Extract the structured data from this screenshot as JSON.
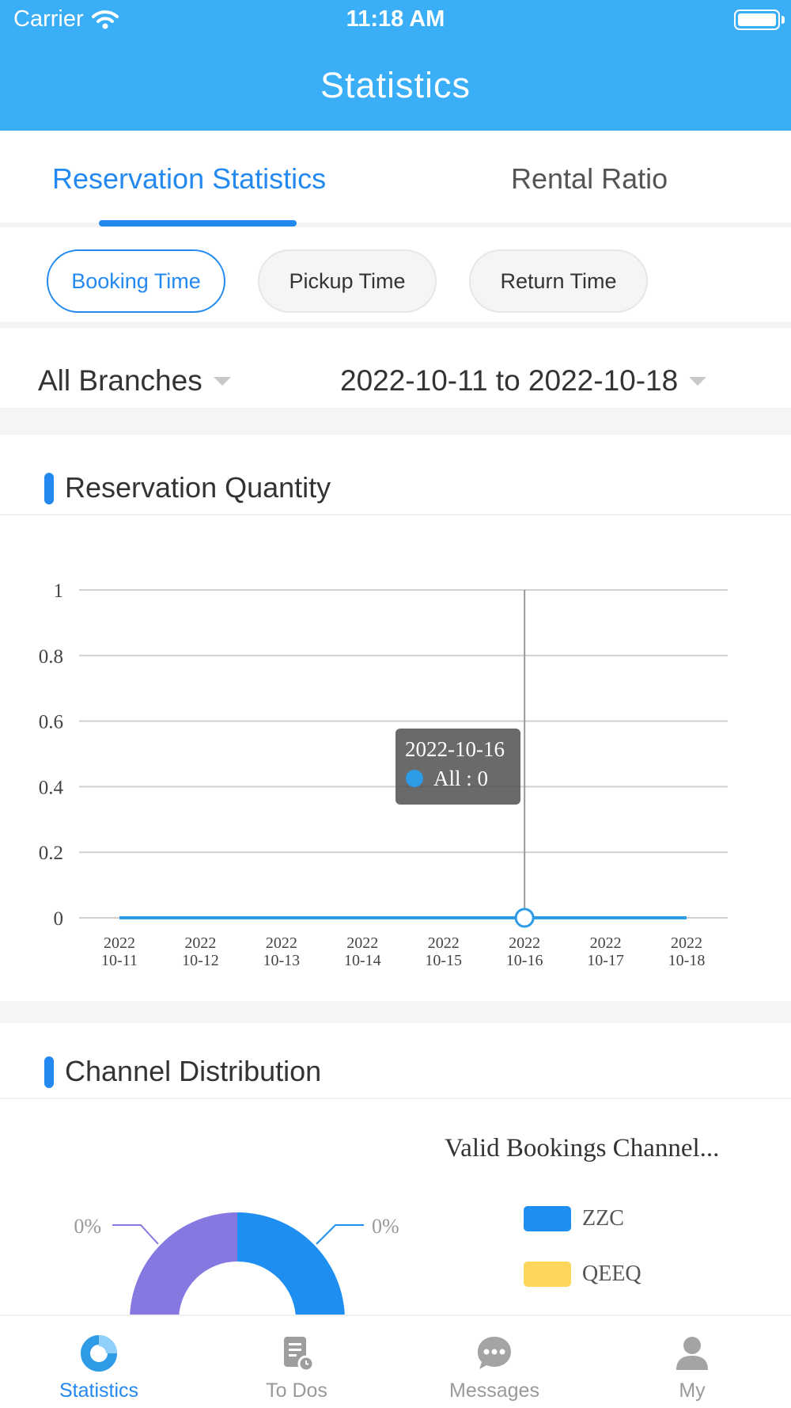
{
  "status_bar": {
    "carrier": "Carrier",
    "time": "11:18 AM"
  },
  "header": {
    "title": "Statistics"
  },
  "tabs": [
    {
      "label": "Reservation Statistics",
      "active": true
    },
    {
      "label": "Rental Ratio",
      "active": false
    }
  ],
  "time_filters": [
    {
      "label": "Booking Time",
      "active": true
    },
    {
      "label": "Pickup Time",
      "active": false
    },
    {
      "label": "Return Time",
      "active": false
    }
  ],
  "branch_selector": {
    "label": "All Branches"
  },
  "date_selector": {
    "label": "2022-10-11 to 2022-10-18"
  },
  "sections": {
    "reservation_quantity": "Reservation Quantity",
    "channel_distribution": "Channel Distribution"
  },
  "colors": {
    "accent": "#2389f0",
    "header_bg": "#3aaef6",
    "series": "#2d9be6",
    "zzc": "#1f8ef1",
    "qeeq": "#fcd75b",
    "purple": "#8578e0"
  },
  "chart_data": {
    "type": "line",
    "title": "",
    "xlabel": "",
    "ylabel": "",
    "x": [
      "2022\n10-11",
      "2022\n10-12",
      "2022\n10-13",
      "2022\n10-14",
      "2022\n10-15",
      "2022\n10-16",
      "2022\n10-17",
      "2022\n10-18"
    ],
    "x_lines": [
      [
        "2022",
        "10-11"
      ],
      [
        "2022",
        "10-12"
      ],
      [
        "2022",
        "10-13"
      ],
      [
        "2022",
        "10-14"
      ],
      [
        "2022",
        "10-15"
      ],
      [
        "2022",
        "10-16"
      ],
      [
        "2022",
        "10-17"
      ],
      [
        "2022",
        "10-18"
      ]
    ],
    "y_ticks": [
      "0",
      "0.2",
      "0.4",
      "0.6",
      "0.8",
      "1"
    ],
    "ylim": [
      0,
      1
    ],
    "grid": true,
    "series": [
      {
        "name": "All",
        "values": [
          0,
          0,
          0,
          0,
          0,
          0,
          0,
          0
        ]
      }
    ],
    "tooltip": {
      "index": 5,
      "date": "2022-10-16",
      "text": "All : 0"
    }
  },
  "channel_chart": {
    "type": "pie",
    "title": "Valid Bookings Channel...",
    "legend": [
      {
        "name": "ZZC",
        "color": "#1f8ef1"
      },
      {
        "name": "QEEQ",
        "color": "#fcd75b"
      }
    ],
    "slices": [
      {
        "name": "ZZC",
        "percent_label": "0%",
        "value": 0.5,
        "color": "#1f8ef1"
      },
      {
        "name": "",
        "percent_label": "0%",
        "value": 0.5,
        "color": "#8578e0"
      }
    ]
  },
  "tabbar": [
    {
      "label": "Statistics",
      "icon": "statistics-icon",
      "active": true
    },
    {
      "label": "To Dos",
      "icon": "todos-icon",
      "active": false
    },
    {
      "label": "Messages",
      "icon": "messages-icon",
      "active": false
    },
    {
      "label": "My",
      "icon": "profile-icon",
      "active": false
    }
  ]
}
